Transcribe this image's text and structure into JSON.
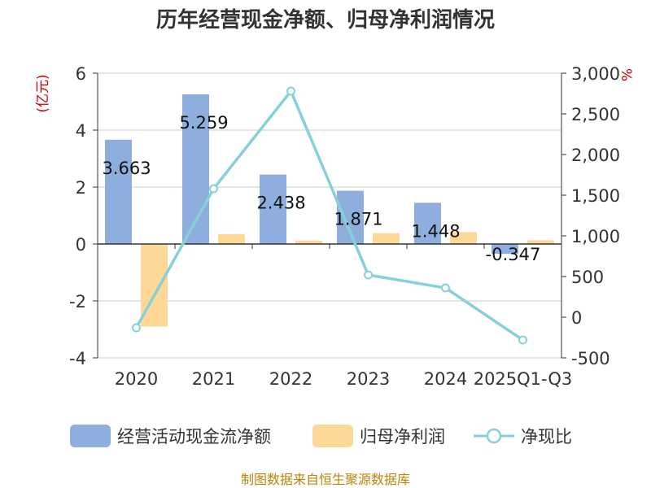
{
  "title": "历年经营现金净额、归母净利润情况",
  "footer": "制图数据来自恒生聚源数据库",
  "colors": {
    "cash_flow": "#8eaedd",
    "net_profit": "#fdd896",
    "ratio": "#86d1d8",
    "axis_label_red": "#cc0000"
  },
  "chart_data": {
    "type": "bar",
    "categories": [
      "2020",
      "2021",
      "2022",
      "2023",
      "2024",
      "2025Q1-Q3"
    ],
    "y_left": {
      "label": "(亿元)",
      "range": [
        -4,
        6
      ],
      "ticks": [
        "-4",
        "-2",
        "0",
        "2",
        "4",
        "6"
      ]
    },
    "y_right": {
      "label": "%",
      "range": [
        -500,
        3000
      ],
      "ticks": [
        "-500",
        "0",
        "500",
        "1,000",
        "1,500",
        "2,000",
        "2,500",
        "3,000"
      ]
    },
    "series": [
      {
        "name": "经营活动现金流净额",
        "type": "bar",
        "values": [
          3.663,
          5.259,
          2.438,
          1.871,
          1.448,
          -0.347
        ],
        "labels": [
          "3.663",
          "5.259",
          "2.438",
          "1.871",
          "1.448",
          "-0.347"
        ]
      },
      {
        "name": "归母净利润",
        "type": "bar",
        "values": [
          -2.9,
          0.35,
          0.12,
          0.38,
          0.42,
          0.13
        ]
      },
      {
        "name": "净现比",
        "type": "line",
        "axis": "right",
        "values": [
          -130,
          1580,
          2780,
          520,
          360,
          -280
        ]
      }
    ],
    "legend_position": "bottom",
    "grid": true
  }
}
